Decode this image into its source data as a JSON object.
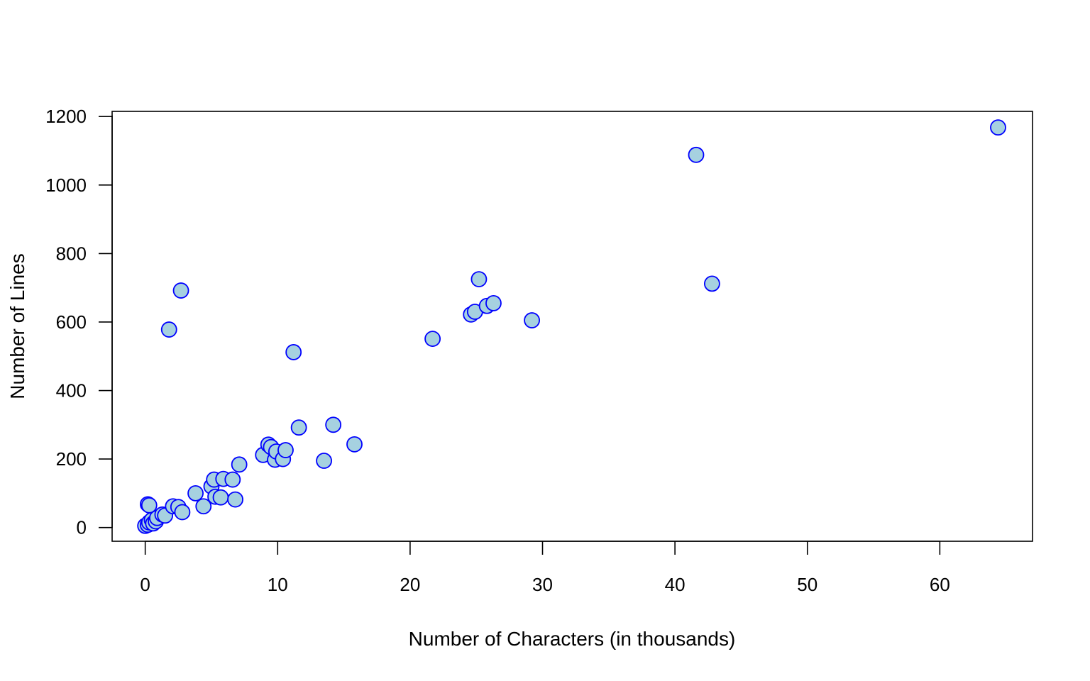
{
  "chart_data": {
    "type": "scatter",
    "title": "",
    "xlabel": "Number of Characters (in thousands)",
    "ylabel": "Number of Lines",
    "xlim": [
      -2.5,
      67
    ],
    "ylim": [
      -40,
      1215
    ],
    "x_ticks": [
      0,
      10,
      20,
      30,
      40,
      50,
      60
    ],
    "x_tick_labels": [
      "0",
      "10",
      "20",
      "30",
      "40",
      "50",
      "60"
    ],
    "y_ticks": [
      0,
      200,
      400,
      600,
      800,
      1000,
      1200
    ],
    "y_tick_labels": [
      "0",
      "200",
      "400",
      "600",
      "800",
      "1000",
      "1200"
    ],
    "grid": false,
    "marker": {
      "fill": "#a6d1e0",
      "stroke": "#0000ff"
    },
    "points": [
      {
        "x": 0.0,
        "y": 5
      },
      {
        "x": 0.2,
        "y": 8
      },
      {
        "x": 0.3,
        "y": 15
      },
      {
        "x": 0.5,
        "y": 22
      },
      {
        "x": 0.6,
        "y": 12
      },
      {
        "x": 0.8,
        "y": 18
      },
      {
        "x": 0.9,
        "y": 28
      },
      {
        "x": 1.3,
        "y": 38
      },
      {
        "x": 1.5,
        "y": 35
      },
      {
        "x": 0.2,
        "y": 68
      },
      {
        "x": 0.3,
        "y": 65
      },
      {
        "x": 2.1,
        "y": 62
      },
      {
        "x": 2.5,
        "y": 60
      },
      {
        "x": 2.8,
        "y": 45
      },
      {
        "x": 3.8,
        "y": 100
      },
      {
        "x": 4.4,
        "y": 62
      },
      {
        "x": 5.0,
        "y": 120
      },
      {
        "x": 5.2,
        "y": 140
      },
      {
        "x": 5.3,
        "y": 90
      },
      {
        "x": 5.7,
        "y": 88
      },
      {
        "x": 5.9,
        "y": 142
      },
      {
        "x": 6.6,
        "y": 140
      },
      {
        "x": 6.8,
        "y": 82
      },
      {
        "x": 7.1,
        "y": 184
      },
      {
        "x": 8.9,
        "y": 212
      },
      {
        "x": 9.3,
        "y": 242
      },
      {
        "x": 9.5,
        "y": 235
      },
      {
        "x": 9.8,
        "y": 198
      },
      {
        "x": 9.9,
        "y": 222
      },
      {
        "x": 10.4,
        "y": 200
      },
      {
        "x": 10.6,
        "y": 226
      },
      {
        "x": 11.6,
        "y": 292
      },
      {
        "x": 13.5,
        "y": 195
      },
      {
        "x": 14.2,
        "y": 300
      },
      {
        "x": 15.8,
        "y": 243
      },
      {
        "x": 11.2,
        "y": 512
      },
      {
        "x": 1.8,
        "y": 578
      },
      {
        "x": 2.7,
        "y": 692
      },
      {
        "x": 21.7,
        "y": 551
      },
      {
        "x": 24.6,
        "y": 622
      },
      {
        "x": 24.9,
        "y": 630
      },
      {
        "x": 25.8,
        "y": 647
      },
      {
        "x": 26.3,
        "y": 655
      },
      {
        "x": 25.2,
        "y": 725
      },
      {
        "x": 29.2,
        "y": 605
      },
      {
        "x": 41.6,
        "y": 1088
      },
      {
        "x": 42.8,
        "y": 712
      },
      {
        "x": 64.4,
        "y": 1168
      }
    ]
  }
}
